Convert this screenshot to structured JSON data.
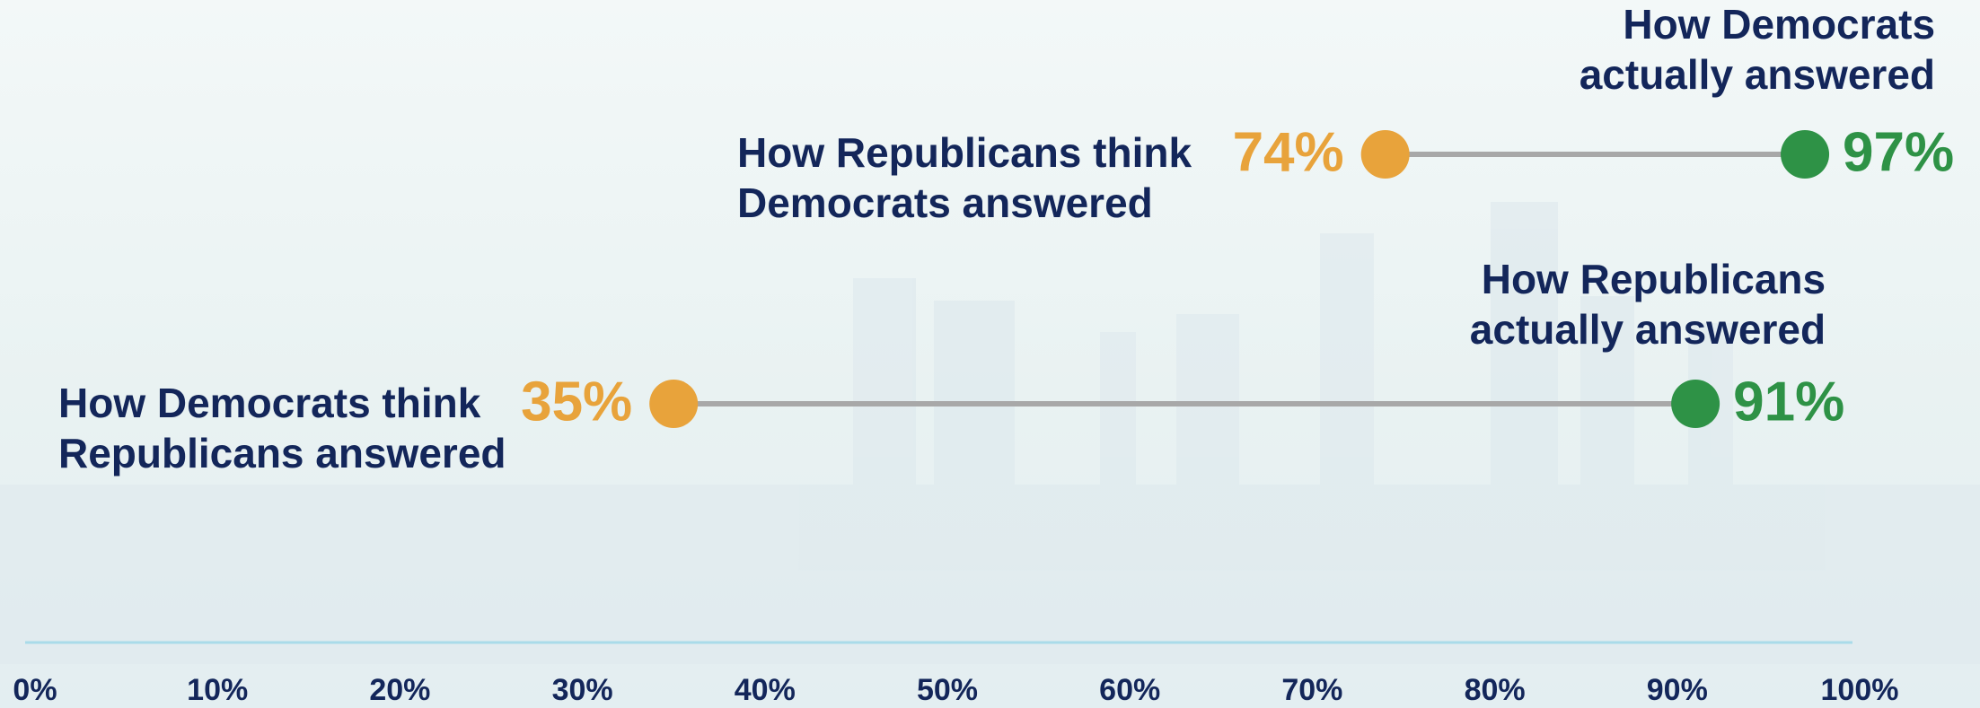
{
  "chart_data": {
    "type": "dumbbell",
    "xlim": [
      0,
      100
    ],
    "xticks": [
      {
        "value": 0,
        "label": "0%"
      },
      {
        "value": 10,
        "label": "10%"
      },
      {
        "value": 20,
        "label": "20%"
      },
      {
        "value": 30,
        "label": "30%"
      },
      {
        "value": 40,
        "label": "40%"
      },
      {
        "value": 50,
        "label": "50%"
      },
      {
        "value": 60,
        "label": "60%"
      },
      {
        "value": 70,
        "label": "70%"
      },
      {
        "value": 80,
        "label": "80%"
      },
      {
        "value": 90,
        "label": "90%"
      },
      {
        "value": 100,
        "label": "100%"
      }
    ],
    "perceived_color": "#e8a33b",
    "actual_color": "#2e9246",
    "line_color": "#a8a8a8",
    "rows": [
      {
        "perceived_name": [
          "How Republicans think",
          "Democrats answered"
        ],
        "perceived": 74,
        "perceived_label": "74%",
        "actual_name": [
          "How Democrats",
          "actually answered"
        ],
        "actual": 97,
        "actual_label": "97%"
      },
      {
        "perceived_name": [
          "How Democrats think",
          "Republicans answered"
        ],
        "perceived": 35,
        "perceived_label": "35%",
        "actual_name": [
          "How Republicans",
          "actually answered"
        ],
        "actual": 91,
        "actual_label": "91%"
      }
    ]
  }
}
